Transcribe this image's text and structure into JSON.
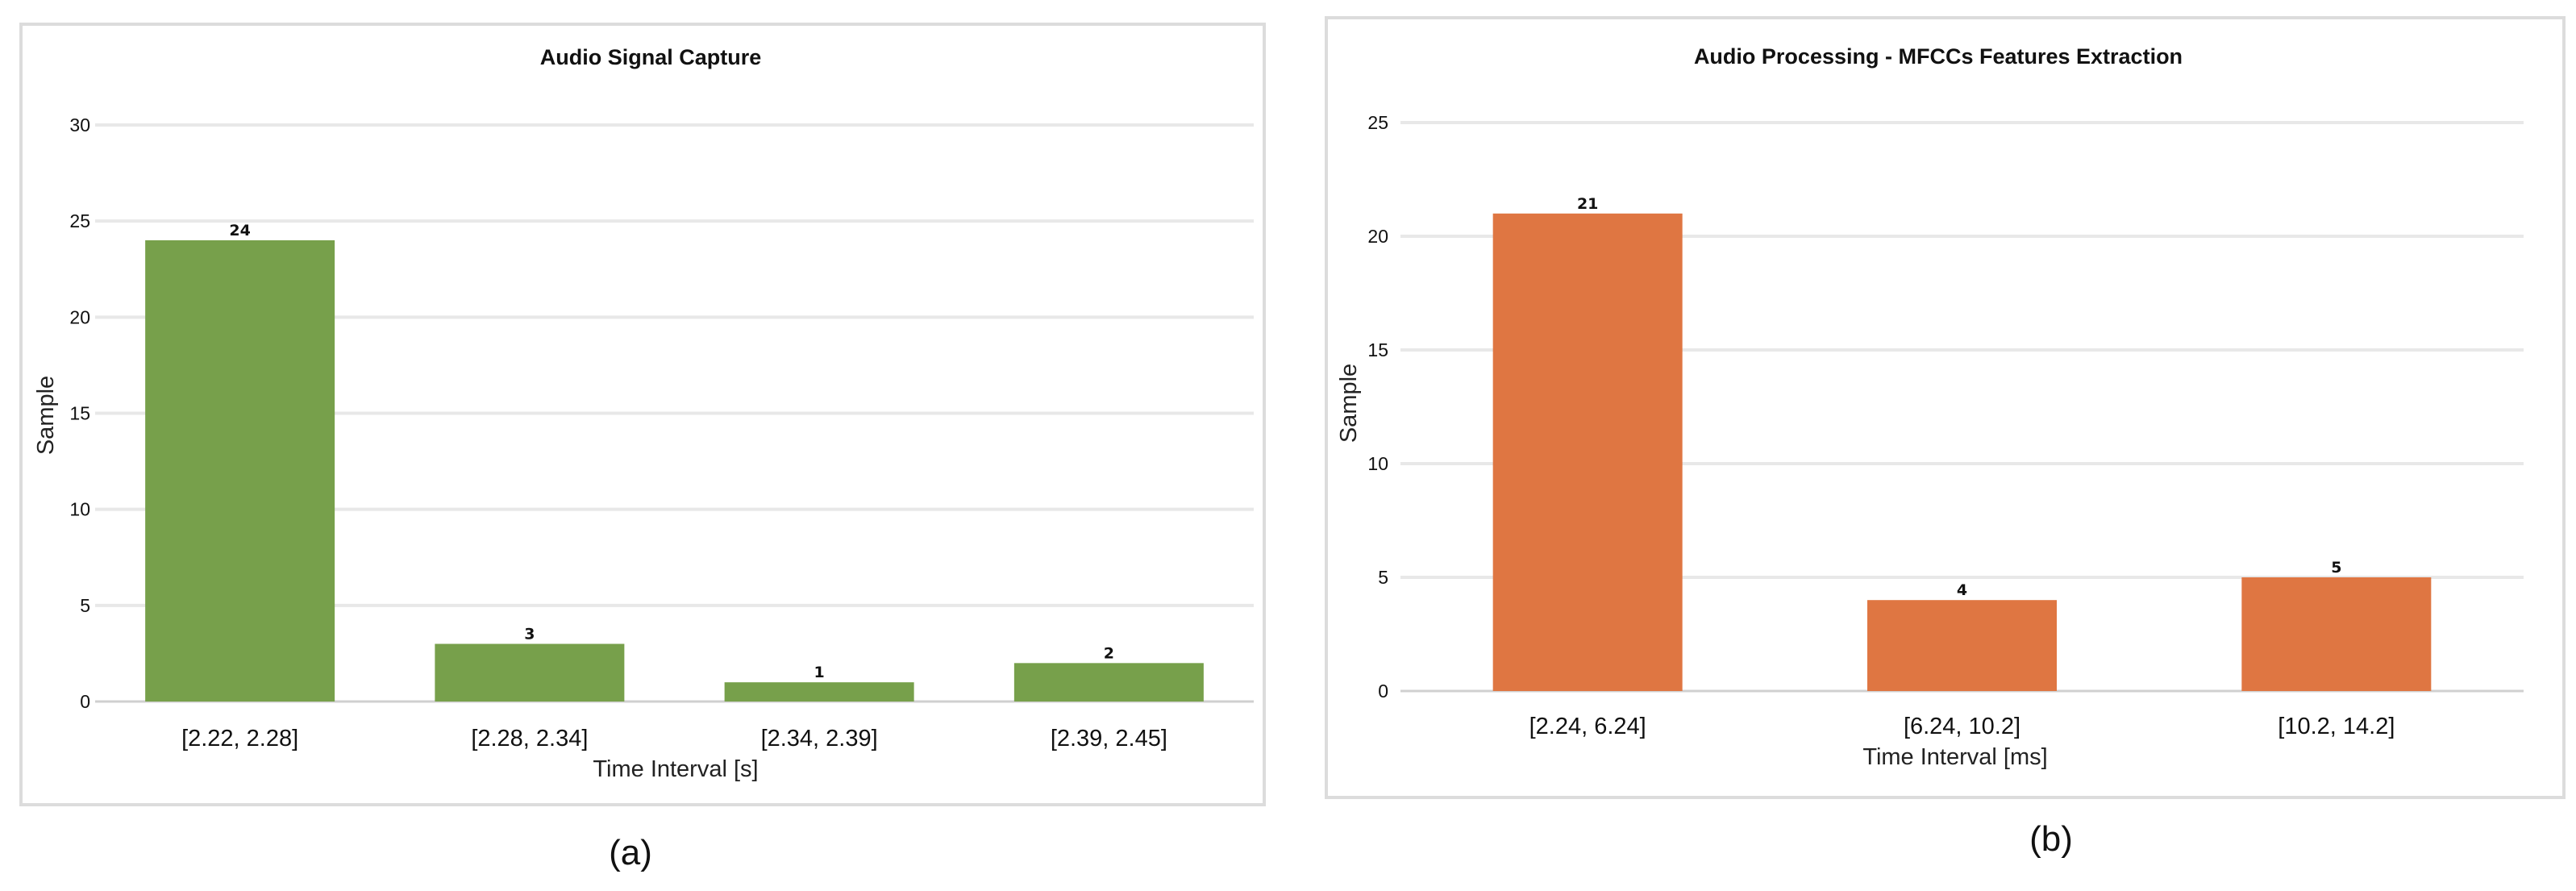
{
  "chart_data": [
    {
      "type": "bar",
      "title": "Audio Signal Capture",
      "xlabel": "Time Interval [s]",
      "ylabel": "Sample",
      "categories": [
        "[2.22, 2.28]",
        "[2.28, 2.34]",
        "[2.34, 2.39]",
        "[2.39, 2.45]"
      ],
      "values": [
        24,
        3,
        1,
        2
      ],
      "data_labels": [
        "24",
        "3",
        "1",
        "2"
      ],
      "ylim": [
        0,
        30
      ],
      "yticks": [
        "0",
        "5",
        "10",
        "15",
        "20",
        "25",
        "30"
      ],
      "grid": true,
      "color": "#77A04B",
      "caption": "(a)"
    },
    {
      "type": "bar",
      "title": "Audio Processing - MFCCs Features Extraction",
      "xlabel": "Time Interval [ms]",
      "ylabel": "Sample",
      "categories": [
        "[2.24, 6.24]",
        "[6.24, 10.2]",
        "[10.2, 14.2]"
      ],
      "values": [
        21,
        4,
        5
      ],
      "data_labels": [
        "21",
        "4",
        "5"
      ],
      "ylim": [
        0,
        25
      ],
      "yticks": [
        "0",
        "5",
        "10",
        "15",
        "20",
        "25"
      ],
      "grid": true,
      "color": "#DF7642",
      "caption": "(b)"
    }
  ]
}
